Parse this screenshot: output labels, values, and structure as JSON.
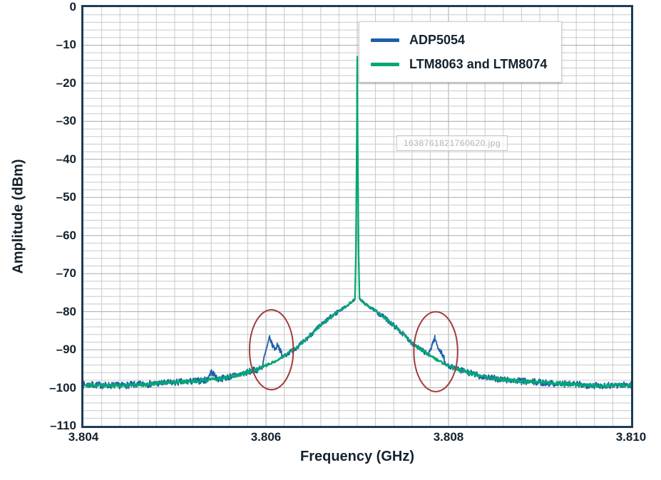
{
  "figure": {
    "watermark": "1638761821760620.jpg"
  },
  "chart_data": {
    "type": "line",
    "title": "",
    "xlabel": "Frequency (GHz)",
    "ylabel": "Amplitude (dBm)",
    "xlim": [
      3.804,
      3.81
    ],
    "ylim": [
      -110,
      0
    ],
    "x_tick_values": [
      3.804,
      3.806,
      3.808,
      3.81
    ],
    "x_tick_labels": [
      "3.804",
      "3.806",
      "3.808",
      "3.810"
    ],
    "y_tick_values": [
      0,
      -10,
      -20,
      -30,
      -40,
      -50,
      -60,
      -70,
      -80,
      -90,
      -100,
      -110
    ],
    "y_tick_labels": [
      "0",
      "–10",
      "–20",
      "–30",
      "–40",
      "–50",
      "–60",
      "–70",
      "–80",
      "–90",
      "–100",
      "–110"
    ],
    "grid": {
      "minor_x_step": 0.0002,
      "minor_y_step": 2,
      "minor_color": "#c9c9c9",
      "major_color": "#ababab",
      "border_color": "#1e3c55"
    },
    "legend_position": "top-right",
    "peak": {
      "freq": 3.807,
      "amp": -13
    },
    "noise_floor_dbm": -99,
    "base_envelope": [
      [
        3.804,
        -99.2
      ],
      [
        3.8044,
        -99.4
      ],
      [
        3.8048,
        -98.9
      ],
      [
        3.8052,
        -98.3
      ],
      [
        3.8055,
        -97.6
      ],
      [
        3.8057,
        -96.6
      ],
      [
        3.8059,
        -95.2
      ],
      [
        3.806,
        -94.2
      ],
      [
        3.8061,
        -93.0
      ],
      [
        3.8062,
        -91.6
      ],
      [
        3.8063,
        -90.0
      ],
      [
        3.8064,
        -88.2
      ],
      [
        3.8065,
        -85.8
      ],
      [
        3.8066,
        -83.6
      ],
      [
        3.8067,
        -81.6
      ],
      [
        3.8068,
        -79.8
      ],
      [
        3.80685,
        -79.0
      ],
      [
        3.8069,
        -78.2
      ],
      [
        3.80693,
        -77.6
      ],
      [
        3.806955,
        -77.1
      ],
      [
        3.806975,
        -76.6
      ],
      [
        3.806985,
        -65.0
      ],
      [
        3.806995,
        -35.0
      ],
      [
        3.807,
        -13.0
      ],
      [
        3.807005,
        -35.0
      ],
      [
        3.807015,
        -65.0
      ],
      [
        3.807025,
        -76.6
      ],
      [
        3.807045,
        -77.1
      ],
      [
        3.80707,
        -77.6
      ],
      [
        3.8071,
        -78.2
      ],
      [
        3.80715,
        -79.0
      ],
      [
        3.8072,
        -79.8
      ],
      [
        3.8073,
        -81.6
      ],
      [
        3.8074,
        -83.6
      ],
      [
        3.8075,
        -85.8
      ],
      [
        3.8076,
        -88.2
      ],
      [
        3.8077,
        -90.0
      ],
      [
        3.8078,
        -91.6
      ],
      [
        3.8079,
        -93.0
      ],
      [
        3.808,
        -94.2
      ],
      [
        3.8081,
        -95.2
      ],
      [
        3.8083,
        -96.6
      ],
      [
        3.8085,
        -97.6
      ],
      [
        3.8088,
        -98.3
      ],
      [
        3.8092,
        -98.9
      ],
      [
        3.8096,
        -99.4
      ],
      [
        3.81,
        -99.2
      ]
    ],
    "series": [
      {
        "name": "ADP5054",
        "color": "#1e5fa8",
        "line_width": 1.8,
        "noise_db": 0.9,
        "seed": 7,
        "spurs": [
          [
            3.80528,
            -104
          ],
          [
            3.80535,
            -97.8
          ],
          [
            3.8054,
            -95.8
          ],
          [
            3.80545,
            -97.0
          ],
          [
            3.80552,
            -104
          ],
          [
            3.8059,
            -104
          ],
          [
            3.80597,
            -93.0
          ],
          [
            3.80601,
            -89.5
          ],
          [
            3.80604,
            -86.8
          ],
          [
            3.80607,
            -88.8
          ],
          [
            3.8061,
            -89.8
          ],
          [
            3.80613,
            -88.6
          ],
          [
            3.80617,
            -91.0
          ],
          [
            3.80622,
            -104
          ],
          [
            3.80773,
            -104
          ],
          [
            3.80778,
            -91.5
          ],
          [
            3.80782,
            -88.6
          ],
          [
            3.80785,
            -86.9
          ],
          [
            3.80788,
            -89.2
          ],
          [
            3.80791,
            -90.3
          ],
          [
            3.80795,
            -92.0
          ],
          [
            3.808,
            -104
          ]
        ]
      },
      {
        "name": "LTM8063 and LTM8074",
        "color": "#00a873",
        "line_width": 2.2,
        "noise_db": 0.45,
        "seed": 29,
        "spurs": []
      }
    ],
    "annotations": {
      "ellipse_color": "#a23b3c",
      "ellipses": [
        {
          "f": 3.80606,
          "a": -90.0,
          "rf": 0.00024,
          "ra": 10.5
        },
        {
          "f": 3.80786,
          "a": -90.5,
          "rf": 0.00024,
          "ra": 10.5
        }
      ]
    }
  }
}
